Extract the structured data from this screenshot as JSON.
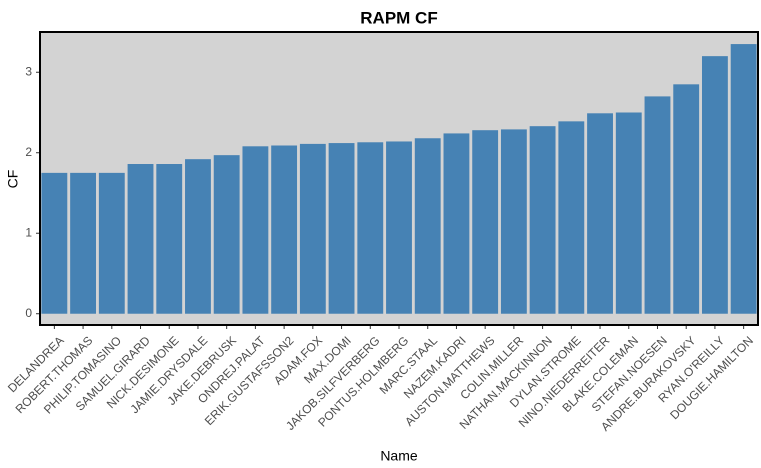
{
  "chart_data": {
    "type": "bar",
    "title": "RAPM CF",
    "x_label": "Name",
    "y_label": "CF",
    "categories": [
      "DELANDREA",
      "ROBERT.THOMAS",
      "PHILIP.TOMASINO",
      "SAMUEL.GIRARD",
      "NICK.DESIMONE",
      "JAMIE.DRYSDALE",
      "JAKE.DEBRUSK",
      "ONDREJ.PALAT",
      "ERIK.GUSTAFSSON2",
      "ADAM.FOX",
      "MAX.DOMI",
      "JAKOB.SILFVERBERG",
      "PONTUS.HOLMBERG",
      "MARC.STAAL",
      "NAZEM.KADRI",
      "AUSTON.MATTHEWS",
      "COLIN.MILLER",
      "NATHAN.MACKINNON",
      "DYLAN.STROME",
      "NINO.NIEDERREITER",
      "BLAKE.COLEMAN",
      "STEFAN.NOESEN",
      "ANDRE.BURAKOVSKY",
      "RYAN.O'REILLY",
      "DOUGIE.HAMILTON"
    ],
    "values": [
      1.75,
      1.75,
      1.75,
      1.86,
      1.86,
      1.92,
      1.97,
      2.08,
      2.09,
      2.11,
      2.12,
      2.13,
      2.14,
      2.18,
      2.24,
      2.28,
      2.29,
      2.33,
      2.39,
      2.49,
      2.5,
      2.7,
      2.85,
      3.2,
      3.35
    ],
    "color": "#4682b4",
    "ylim": [
      -0.14,
      3.5
    ],
    "yticks": [
      0,
      1,
      2,
      3
    ],
    "grid": false
  }
}
